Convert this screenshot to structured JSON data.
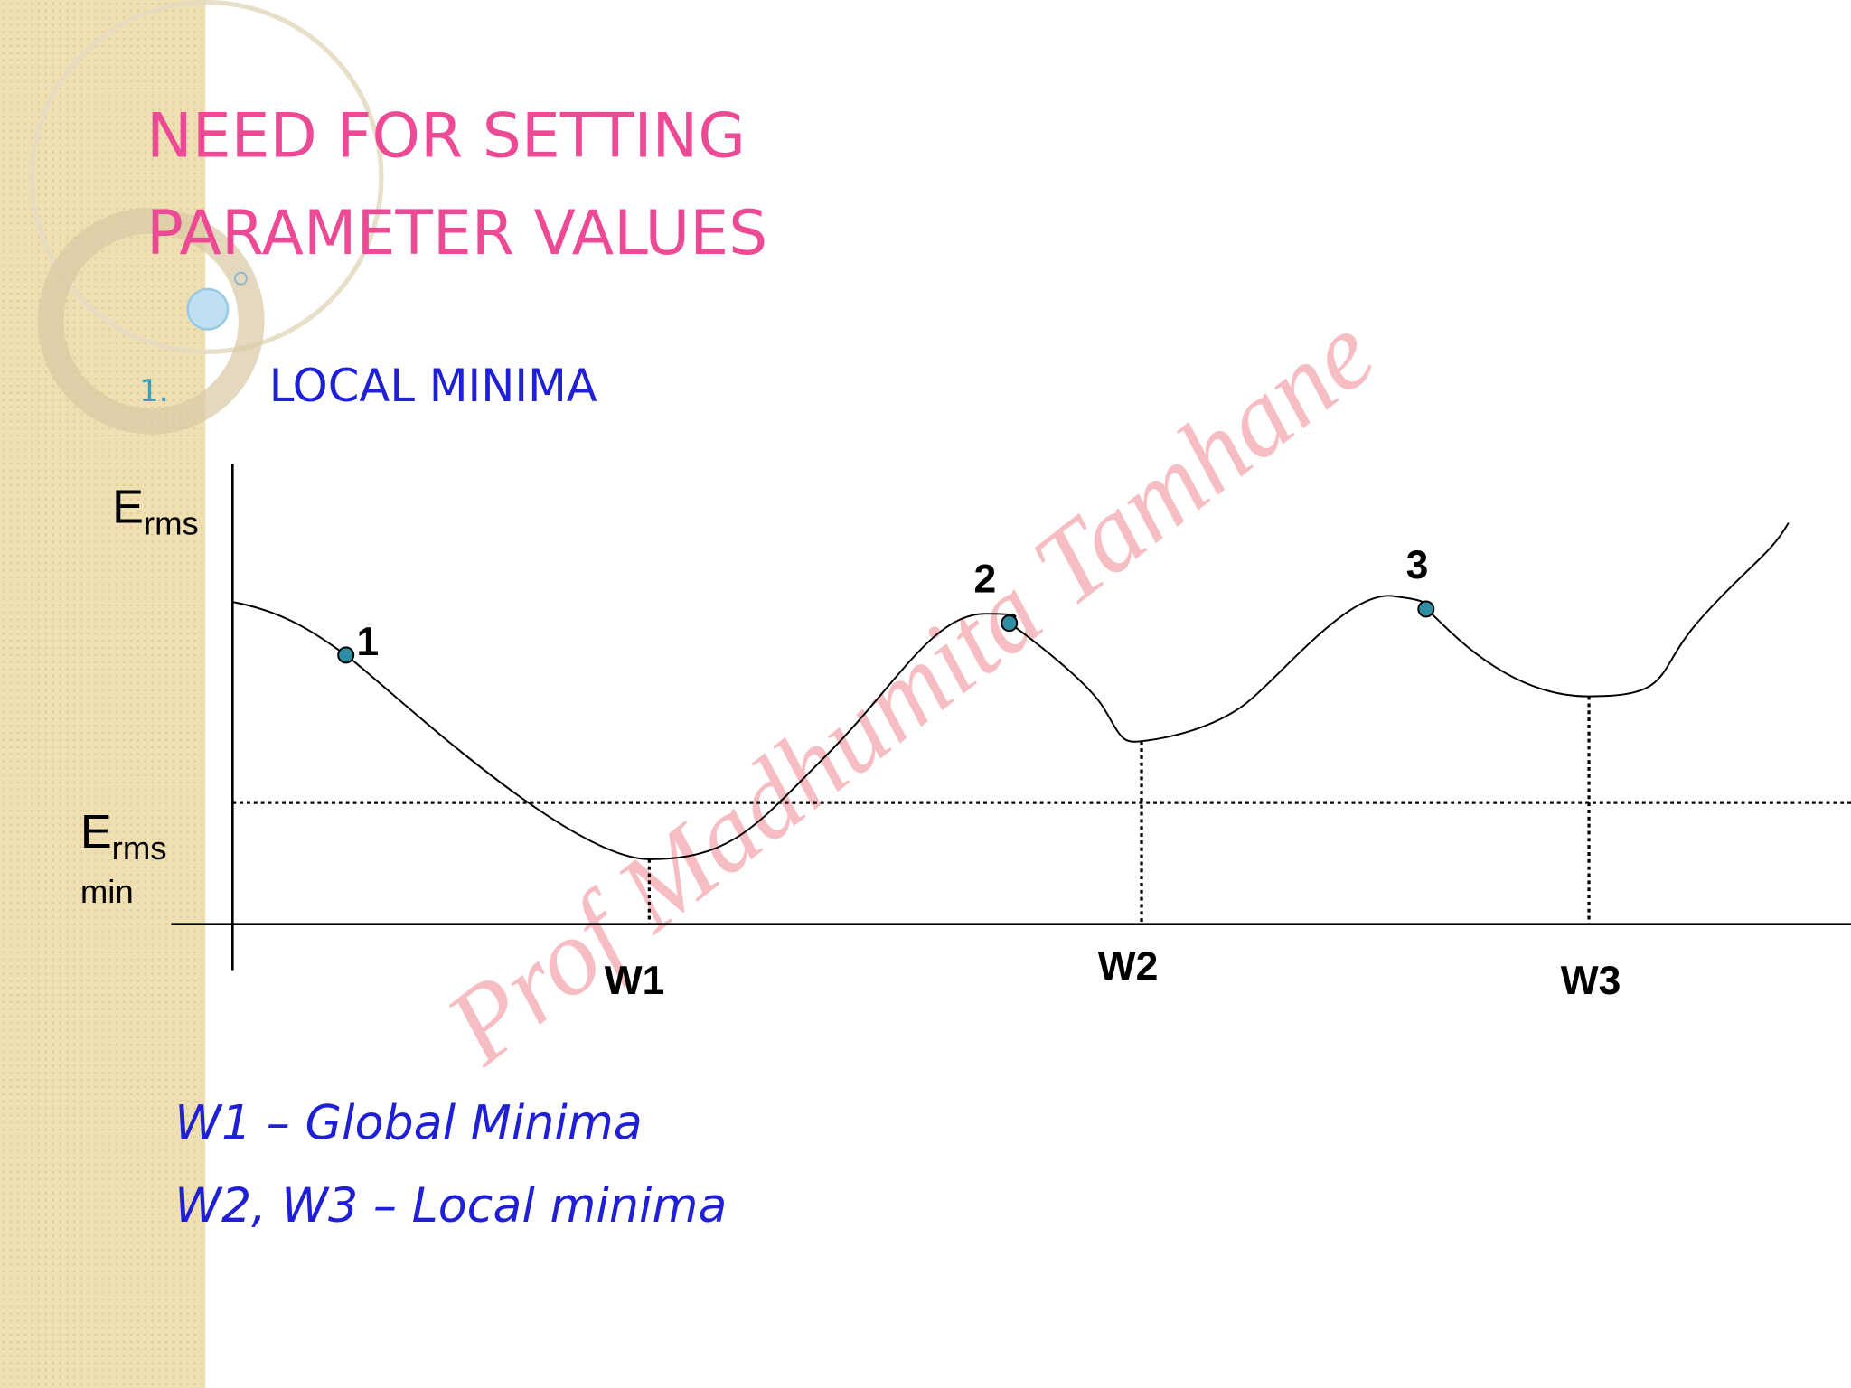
{
  "title": {
    "line1": "NEED FOR SETTING",
    "line2": "PARAMETER  VALUES"
  },
  "item": {
    "number": "1.",
    "text": "LOCAL MINIMA"
  },
  "diagram": {
    "y_label": {
      "main": "E",
      "sub": "rms"
    },
    "min_label": {
      "main": "E",
      "sub": "rms",
      "below": "min"
    },
    "points": [
      "1",
      "2",
      "3"
    ],
    "minima": [
      "W1",
      "W2",
      "W3"
    ]
  },
  "notes": [
    "W1 – Global Minima",
    "W2, W3 – Local minima"
  ],
  "watermark": "Prof Madhumita Tamhane"
}
